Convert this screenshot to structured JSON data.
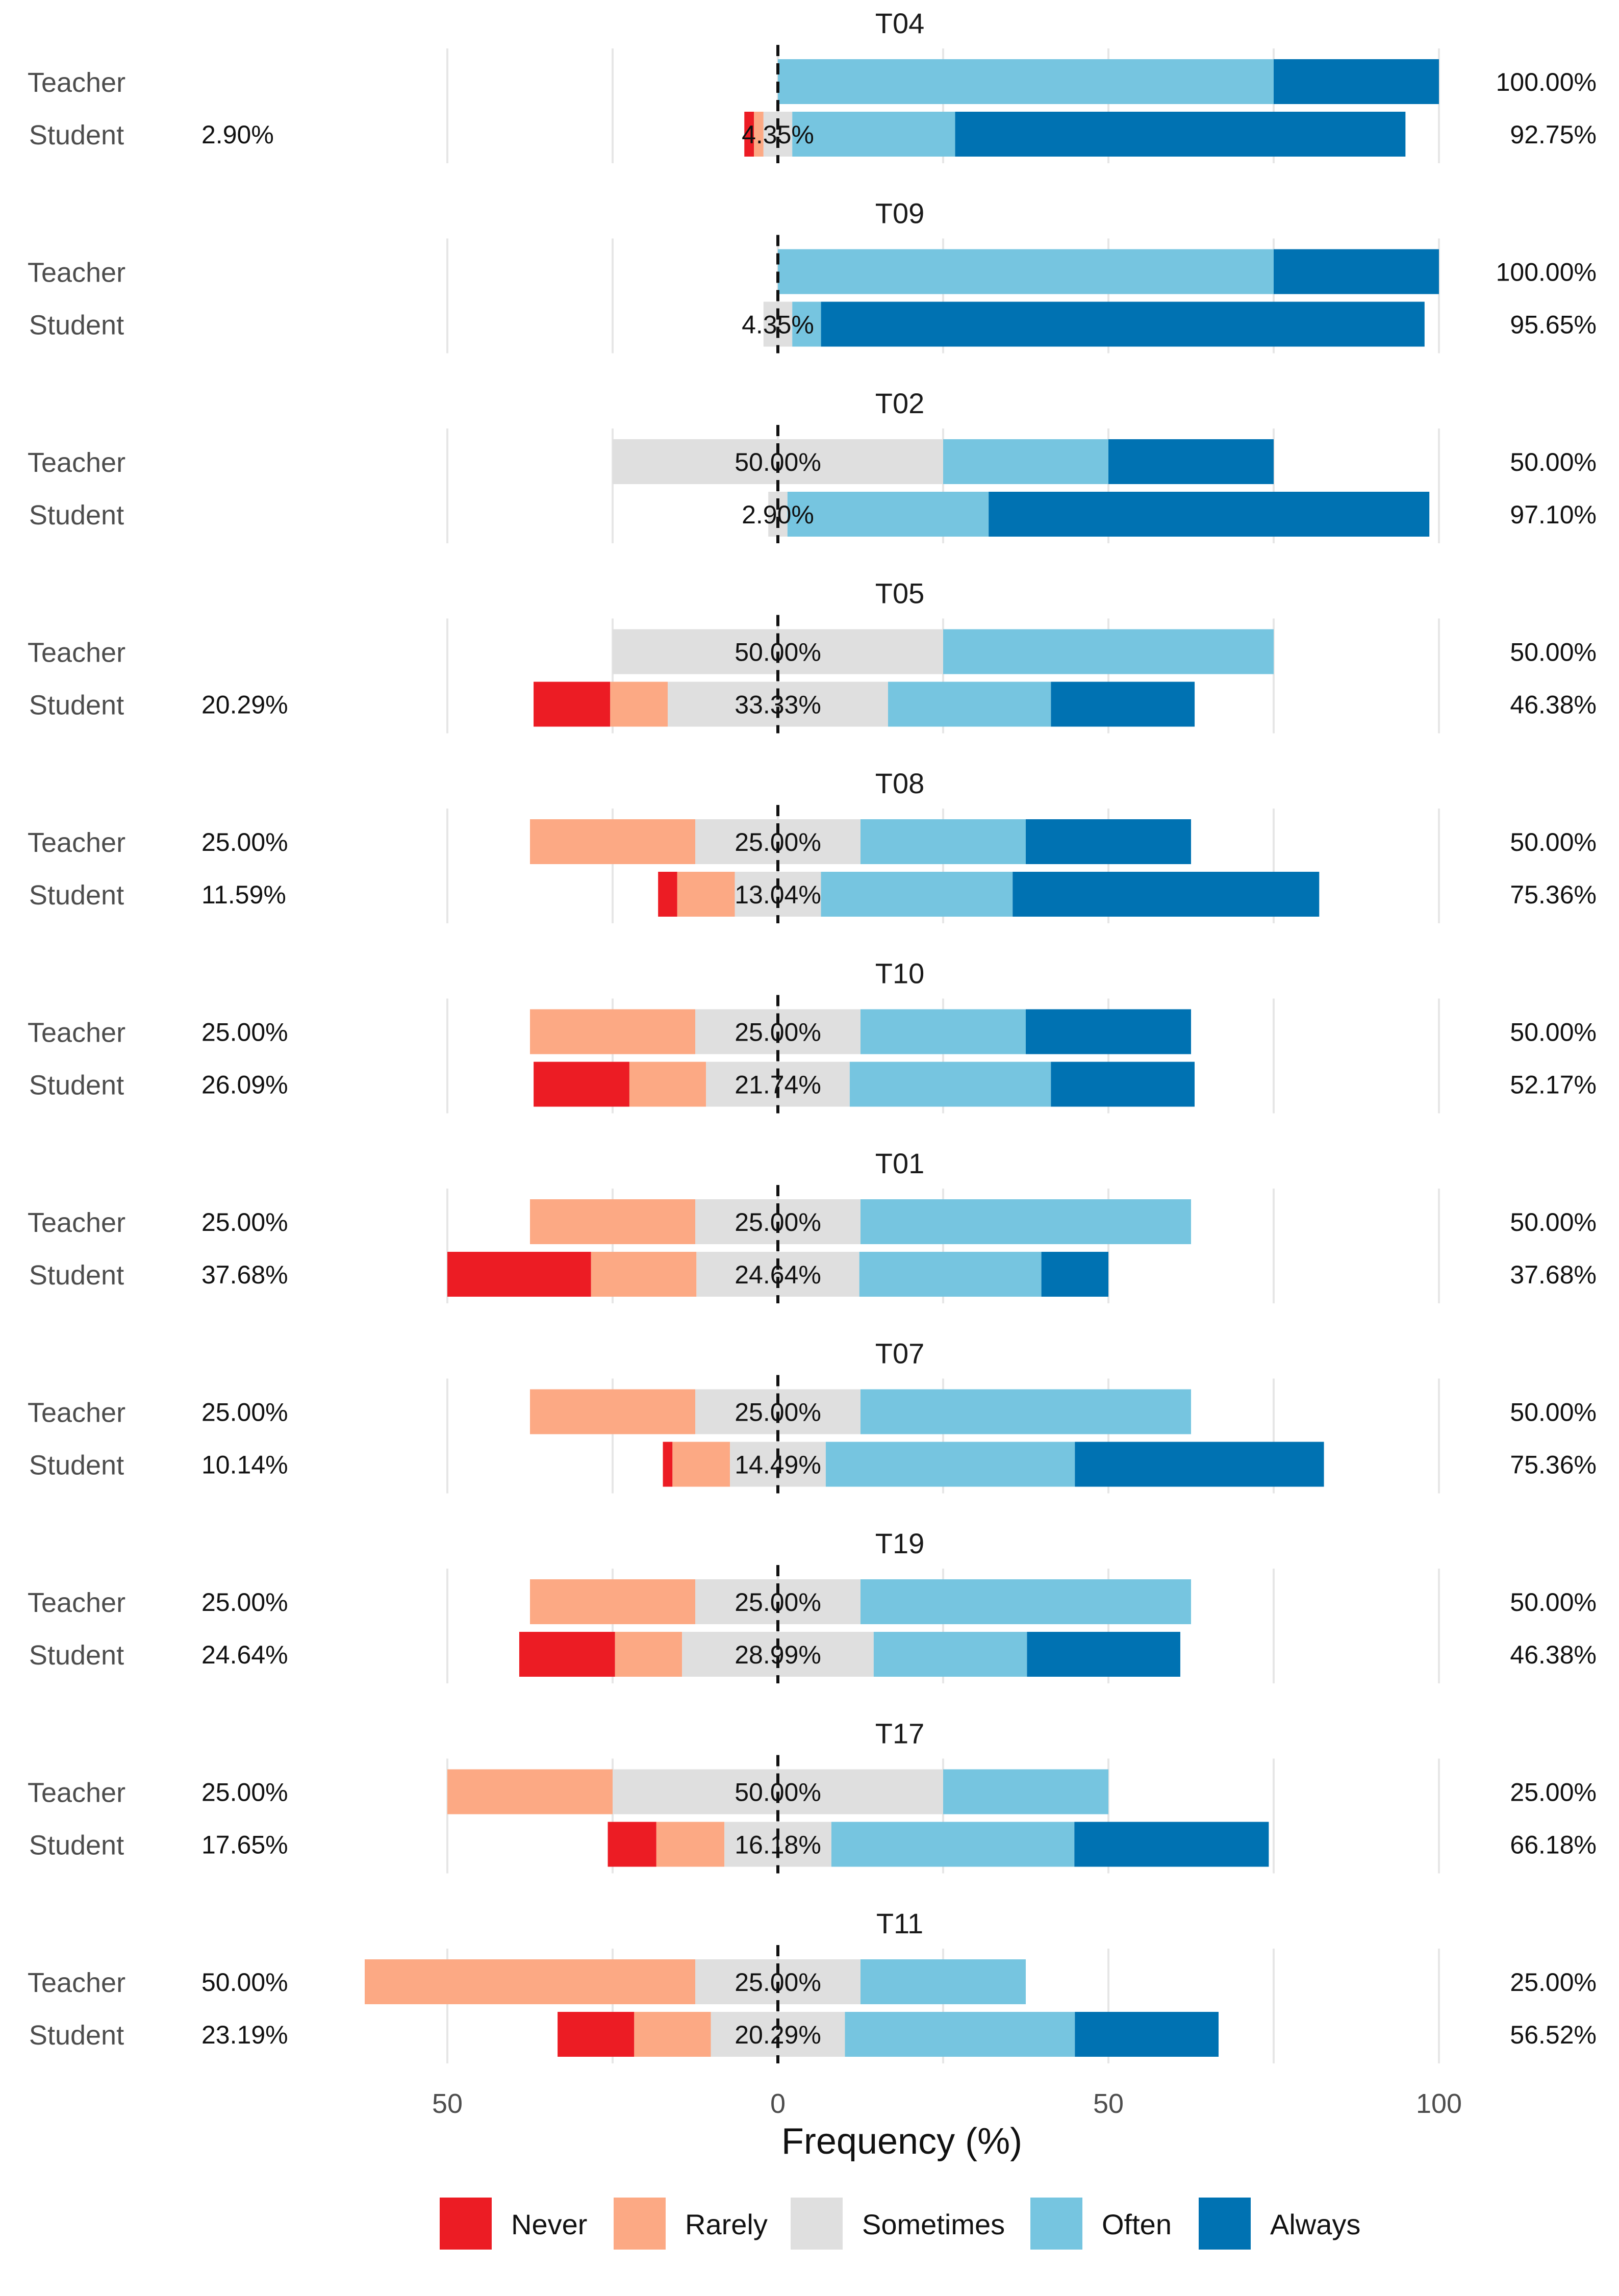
{
  "chart_data": {
    "type": "bar",
    "subtype": "diverging-stacked-likert",
    "xlabel": "Frequency (%)",
    "ylabel": "",
    "x_ticks": [
      {
        "value": -50,
        "label": "50"
      },
      {
        "value": 0,
        "label": "0"
      },
      {
        "value": 50,
        "label": "50"
      },
      {
        "value": 100,
        "label": "100"
      }
    ],
    "xlim": [
      -75,
      100
    ],
    "grid": true,
    "legend_position": "bottom",
    "levels": [
      "Never",
      "Rarely",
      "Sometimes",
      "Often",
      "Always"
    ],
    "colors": {
      "Never": "#ec1c24",
      "Rarely": "#fca984",
      "Sometimes": "#dfdfdf",
      "Often": "#76c5e0",
      "Always": "#0072b2"
    },
    "panels": [
      {
        "title": "T04",
        "rows": [
          {
            "group": "Teacher",
            "left_label": "",
            "center_label": "",
            "right_label": "100.00%",
            "values": [
              0,
              0,
              0,
              75,
              25
            ]
          },
          {
            "group": "Student",
            "left_label": "2.90%",
            "center_label": "4.35%",
            "right_label": "92.75%",
            "values": [
              1.45,
              1.45,
              4.35,
              24.64,
              68.12
            ]
          }
        ]
      },
      {
        "title": "T09",
        "rows": [
          {
            "group": "Teacher",
            "left_label": "",
            "center_label": "",
            "right_label": "100.00%",
            "values": [
              0,
              0,
              0,
              75,
              25
            ]
          },
          {
            "group": "Student",
            "left_label": "",
            "center_label": "4.35%",
            "right_label": "95.65%",
            "values": [
              0,
              0,
              4.35,
              4.35,
              91.3
            ]
          }
        ]
      },
      {
        "title": "T02",
        "rows": [
          {
            "group": "Teacher",
            "left_label": "",
            "center_label": "50.00%",
            "right_label": "50.00%",
            "values": [
              0,
              0,
              50,
              25,
              25
            ]
          },
          {
            "group": "Student",
            "left_label": "",
            "center_label": "2.90%",
            "right_label": "97.10%",
            "values": [
              0,
              0,
              2.9,
              30.43,
              66.67
            ]
          }
        ]
      },
      {
        "title": "T05",
        "rows": [
          {
            "group": "Teacher",
            "left_label": "",
            "center_label": "50.00%",
            "right_label": "50.00%",
            "values": [
              0,
              0,
              50,
              50,
              0
            ]
          },
          {
            "group": "Student",
            "left_label": "20.29%",
            "center_label": "33.33%",
            "right_label": "46.38%",
            "values": [
              11.59,
              8.7,
              33.33,
              24.64,
              21.74
            ]
          }
        ]
      },
      {
        "title": "T08",
        "rows": [
          {
            "group": "Teacher",
            "left_label": "25.00%",
            "center_label": "25.00%",
            "right_label": "50.00%",
            "values": [
              0,
              25,
              25,
              25,
              25
            ]
          },
          {
            "group": "Student",
            "left_label": "11.59%",
            "center_label": "13.04%",
            "right_label": "75.36%",
            "values": [
              2.9,
              8.7,
              13.04,
              28.99,
              46.38
            ]
          }
        ]
      },
      {
        "title": "T10",
        "rows": [
          {
            "group": "Teacher",
            "left_label": "25.00%",
            "center_label": "25.00%",
            "right_label": "50.00%",
            "values": [
              0,
              25,
              25,
              25,
              25
            ]
          },
          {
            "group": "Student",
            "left_label": "26.09%",
            "center_label": "21.74%",
            "right_label": "52.17%",
            "values": [
              14.49,
              11.59,
              21.74,
              30.43,
              21.74
            ]
          }
        ]
      },
      {
        "title": "T01",
        "rows": [
          {
            "group": "Teacher",
            "left_label": "25.00%",
            "center_label": "25.00%",
            "right_label": "50.00%",
            "values": [
              0,
              25,
              25,
              50,
              0
            ]
          },
          {
            "group": "Student",
            "left_label": "37.68%",
            "center_label": "24.64%",
            "right_label": "37.68%",
            "values": [
              21.74,
              15.94,
              24.64,
              27.54,
              10.14
            ]
          }
        ]
      },
      {
        "title": "T07",
        "rows": [
          {
            "group": "Teacher",
            "left_label": "25.00%",
            "center_label": "25.00%",
            "right_label": "50.00%",
            "values": [
              0,
              25,
              25,
              50,
              0
            ]
          },
          {
            "group": "Student",
            "left_label": "10.14%",
            "center_label": "14.49%",
            "right_label": "75.36%",
            "values": [
              1.45,
              8.7,
              14.49,
              37.68,
              37.68
            ]
          }
        ]
      },
      {
        "title": "T19",
        "rows": [
          {
            "group": "Teacher",
            "left_label": "25.00%",
            "center_label": "25.00%",
            "right_label": "50.00%",
            "values": [
              0,
              25,
              25,
              50,
              0
            ]
          },
          {
            "group": "Student",
            "left_label": "24.64%",
            "center_label": "28.99%",
            "right_label": "46.38%",
            "values": [
              14.49,
              10.14,
              28.99,
              23.19,
              23.19
            ]
          }
        ]
      },
      {
        "title": "T17",
        "rows": [
          {
            "group": "Teacher",
            "left_label": "25.00%",
            "center_label": "50.00%",
            "right_label": "25.00%",
            "values": [
              0,
              25,
              50,
              25,
              0
            ]
          },
          {
            "group": "Student",
            "left_label": "17.65%",
            "center_label": "16.18%",
            "right_label": "66.18%",
            "values": [
              7.35,
              10.29,
              16.18,
              36.76,
              29.41
            ]
          }
        ]
      },
      {
        "title": "T11",
        "rows": [
          {
            "group": "Teacher",
            "left_label": "50.00%",
            "center_label": "25.00%",
            "right_label": "25.00%",
            "values": [
              0,
              50,
              25,
              25,
              0
            ]
          },
          {
            "group": "Student",
            "left_label": "23.19%",
            "center_label": "20.29%",
            "right_label": "56.52%",
            "values": [
              11.59,
              11.59,
              20.29,
              34.78,
              21.74
            ]
          }
        ]
      }
    ]
  }
}
